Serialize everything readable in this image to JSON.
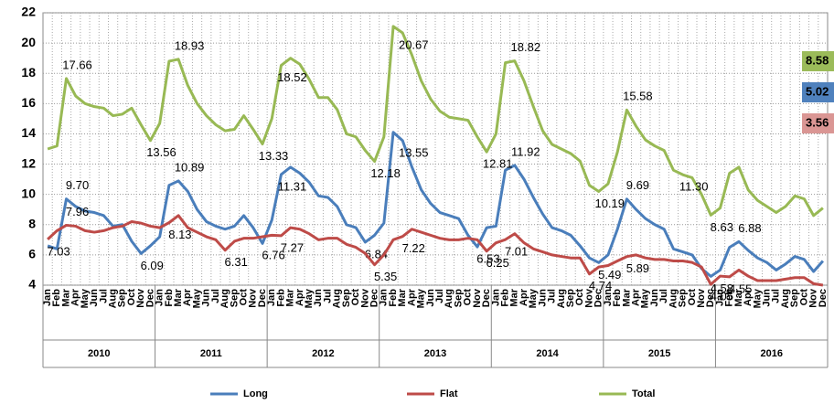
{
  "chart_data": {
    "type": "line",
    "categories": [
      "Jan",
      "Feb",
      "Mar",
      "Apr",
      "May",
      "Jun",
      "Jul",
      "Aug",
      "Sep",
      "Oct",
      "Nov",
      "Dec",
      "Jan",
      "Feb",
      "Mar",
      "Apr",
      "May",
      "Jun",
      "Jul",
      "Aug",
      "Sep",
      "Oct",
      "Nov",
      "Dec",
      "Jan",
      "Feb",
      "Mar",
      "Apr",
      "May",
      "Jun",
      "Jul",
      "Aug",
      "Sep",
      "Oct",
      "Nov",
      "Dec",
      "Jan",
      "Feb",
      "Mar",
      "Apr",
      "May",
      "Jun",
      "Jul",
      "Aug",
      "Sep",
      "Oct",
      "Nov",
      "Dec",
      "Jan",
      "Feb",
      "Mar",
      "Apr",
      "May",
      "Jun",
      "Jul",
      "Aug",
      "Sep",
      "Oct",
      "Nov",
      "Dec",
      "Jan",
      "Feb",
      "Mar",
      "Apr",
      "May",
      "Jun",
      "Jul",
      "Aug",
      "Sep",
      "Oct",
      "Nov",
      "Dec",
      "Jan",
      "Feb",
      "Mar",
      "Apr",
      "May",
      "Jun",
      "Jul",
      "Aug",
      "Sep",
      "Oct",
      "Nov",
      "Dec"
    ],
    "x_groups": [
      "2010",
      "2011",
      "2012",
      "2013",
      "2014",
      "2015",
      "2016"
    ],
    "ylim": [
      4,
      22
    ],
    "yticks": [
      4,
      6,
      8,
      10,
      12,
      14,
      16,
      18,
      20,
      22
    ],
    "grid": true,
    "legend": "bottom",
    "series": [
      {
        "name": "Long",
        "color": "#4a7ebb",
        "end_label": "5.02",
        "end_color": "#4f81bd",
        "values": [
          6.6,
          6.4,
          9.7,
          9.2,
          8.9,
          8.8,
          8.6,
          7.9,
          8.0,
          6.9,
          6.09,
          6.6,
          7.2,
          10.6,
          10.89,
          10.2,
          9.0,
          8.2,
          7.9,
          7.7,
          7.9,
          8.6,
          7.8,
          6.76,
          8.3,
          11.31,
          11.8,
          11.4,
          10.8,
          9.9,
          9.8,
          9.2,
          8.0,
          7.8,
          6.84,
          7.3,
          8.1,
          14.1,
          13.55,
          11.8,
          10.3,
          9.4,
          8.8,
          8.6,
          8.4,
          7.3,
          6.53,
          7.8,
          7.9,
          11.6,
          11.92,
          11.0,
          9.8,
          8.7,
          7.8,
          7.6,
          7.3,
          6.6,
          5.8,
          5.49,
          6.0,
          7.7,
          9.69,
          9.0,
          8.4,
          8.0,
          7.7,
          6.4,
          6.2,
          6.0,
          5.1,
          4.58,
          5.0,
          6.5,
          6.88,
          6.3,
          5.8,
          5.5,
          5.0,
          5.4,
          5.9,
          5.7,
          4.9,
          5.6
        ],
        "value_labels": [
          null,
          null,
          "9.70",
          null,
          null,
          null,
          null,
          null,
          null,
          null,
          "6.09",
          null,
          null,
          null,
          "10.89",
          null,
          null,
          null,
          null,
          null,
          null,
          null,
          null,
          "6.76",
          null,
          "11.31",
          null,
          null,
          null,
          null,
          null,
          null,
          null,
          null,
          "6.84",
          null,
          null,
          null,
          "13.55",
          null,
          null,
          null,
          null,
          null,
          null,
          null,
          "6.53",
          null,
          null,
          null,
          "11.92",
          null,
          null,
          null,
          null,
          null,
          null,
          null,
          null,
          "5.49",
          null,
          null,
          "9.69",
          null,
          null,
          null,
          null,
          null,
          null,
          null,
          null,
          "4.58",
          null,
          null,
          "6.88",
          null,
          null,
          null,
          null,
          null,
          null,
          null,
          null,
          null
        ]
      },
      {
        "name": "Flat",
        "color": "#be4b48",
        "end_label": "3.56",
        "end_color": "#da9694",
        "values": [
          7.03,
          7.6,
          7.96,
          7.9,
          7.6,
          7.5,
          7.6,
          7.8,
          7.9,
          8.2,
          8.1,
          7.9,
          7.8,
          8.13,
          8.6,
          7.8,
          7.5,
          7.2,
          7.0,
          6.31,
          6.9,
          7.1,
          7.1,
          7.2,
          7.3,
          7.27,
          7.8,
          7.7,
          7.4,
          7.0,
          7.1,
          7.1,
          6.7,
          6.5,
          6.1,
          5.35,
          6.0,
          7.0,
          7.22,
          7.7,
          7.5,
          7.3,
          7.1,
          7.0,
          7.0,
          7.1,
          7.0,
          6.25,
          6.8,
          7.01,
          7.4,
          6.8,
          6.4,
          6.2,
          6.0,
          5.9,
          5.8,
          5.8,
          4.74,
          5.2,
          5.3,
          5.6,
          5.89,
          6.0,
          5.8,
          5.7,
          5.7,
          5.6,
          5.6,
          5.5,
          5.2,
          4.05,
          4.6,
          4.55,
          5.0,
          4.6,
          4.3,
          4.3,
          4.3,
          4.4,
          4.5,
          4.5,
          4.1,
          4.0
        ],
        "value_labels": [
          "7.03",
          null,
          "7.96",
          null,
          null,
          null,
          null,
          null,
          null,
          null,
          null,
          null,
          null,
          "8.13",
          null,
          null,
          null,
          null,
          null,
          "6.31",
          null,
          null,
          null,
          null,
          null,
          "7.27",
          null,
          null,
          null,
          null,
          null,
          null,
          null,
          null,
          null,
          "5.35",
          null,
          null,
          "7.22",
          null,
          null,
          null,
          null,
          null,
          null,
          null,
          null,
          "6.25",
          null,
          "7.01",
          null,
          null,
          null,
          null,
          null,
          null,
          null,
          null,
          "4.74",
          null,
          null,
          null,
          "5.89",
          null,
          null,
          null,
          null,
          null,
          null,
          null,
          null,
          "4.05",
          null,
          "4.55",
          null,
          null,
          null,
          null,
          null,
          null,
          null,
          null,
          null,
          null
        ]
      },
      {
        "name": "Total",
        "color": "#98b954",
        "end_label": "8.58",
        "end_color": "#9bbb59",
        "values": [
          13.0,
          13.2,
          17.66,
          16.5,
          16.0,
          15.8,
          15.7,
          15.2,
          15.3,
          15.7,
          14.6,
          13.56,
          14.7,
          18.8,
          18.93,
          17.2,
          16.0,
          15.2,
          14.6,
          14.2,
          14.3,
          15.2,
          14.3,
          13.33,
          15.0,
          18.52,
          19.0,
          18.6,
          17.6,
          16.4,
          16.4,
          15.6,
          14.0,
          13.8,
          12.9,
          12.18,
          13.8,
          21.1,
          20.67,
          19.2,
          17.5,
          16.3,
          15.5,
          15.1,
          15.0,
          14.9,
          13.8,
          12.81,
          14.0,
          18.7,
          18.82,
          17.5,
          15.8,
          14.2,
          13.3,
          13.0,
          12.7,
          12.2,
          10.6,
          10.19,
          10.7,
          12.8,
          15.58,
          14.5,
          13.6,
          13.2,
          12.9,
          11.6,
          11.3,
          11.1,
          10.0,
          8.63,
          9.1,
          11.4,
          11.8,
          10.3,
          9.6,
          9.2,
          8.8,
          9.2,
          9.9,
          9.7,
          8.6,
          9.1
        ],
        "value_labels": [
          null,
          null,
          "17.66",
          null,
          null,
          null,
          null,
          null,
          null,
          null,
          null,
          "13.56",
          null,
          null,
          "18.93",
          null,
          null,
          null,
          null,
          null,
          null,
          null,
          null,
          "13.33",
          null,
          "18.52",
          null,
          null,
          null,
          null,
          null,
          null,
          null,
          null,
          null,
          "12.18",
          null,
          null,
          "20.67",
          null,
          null,
          null,
          null,
          null,
          null,
          null,
          null,
          "12.81",
          null,
          null,
          "18.82",
          null,
          null,
          null,
          null,
          null,
          null,
          null,
          null,
          "10.19",
          null,
          null,
          "15.58",
          null,
          null,
          null,
          null,
          null,
          "11.30",
          null,
          null,
          "8.63",
          null,
          null,
          null,
          null,
          null,
          null,
          null,
          null,
          null,
          null,
          null,
          null
        ]
      }
    ]
  }
}
